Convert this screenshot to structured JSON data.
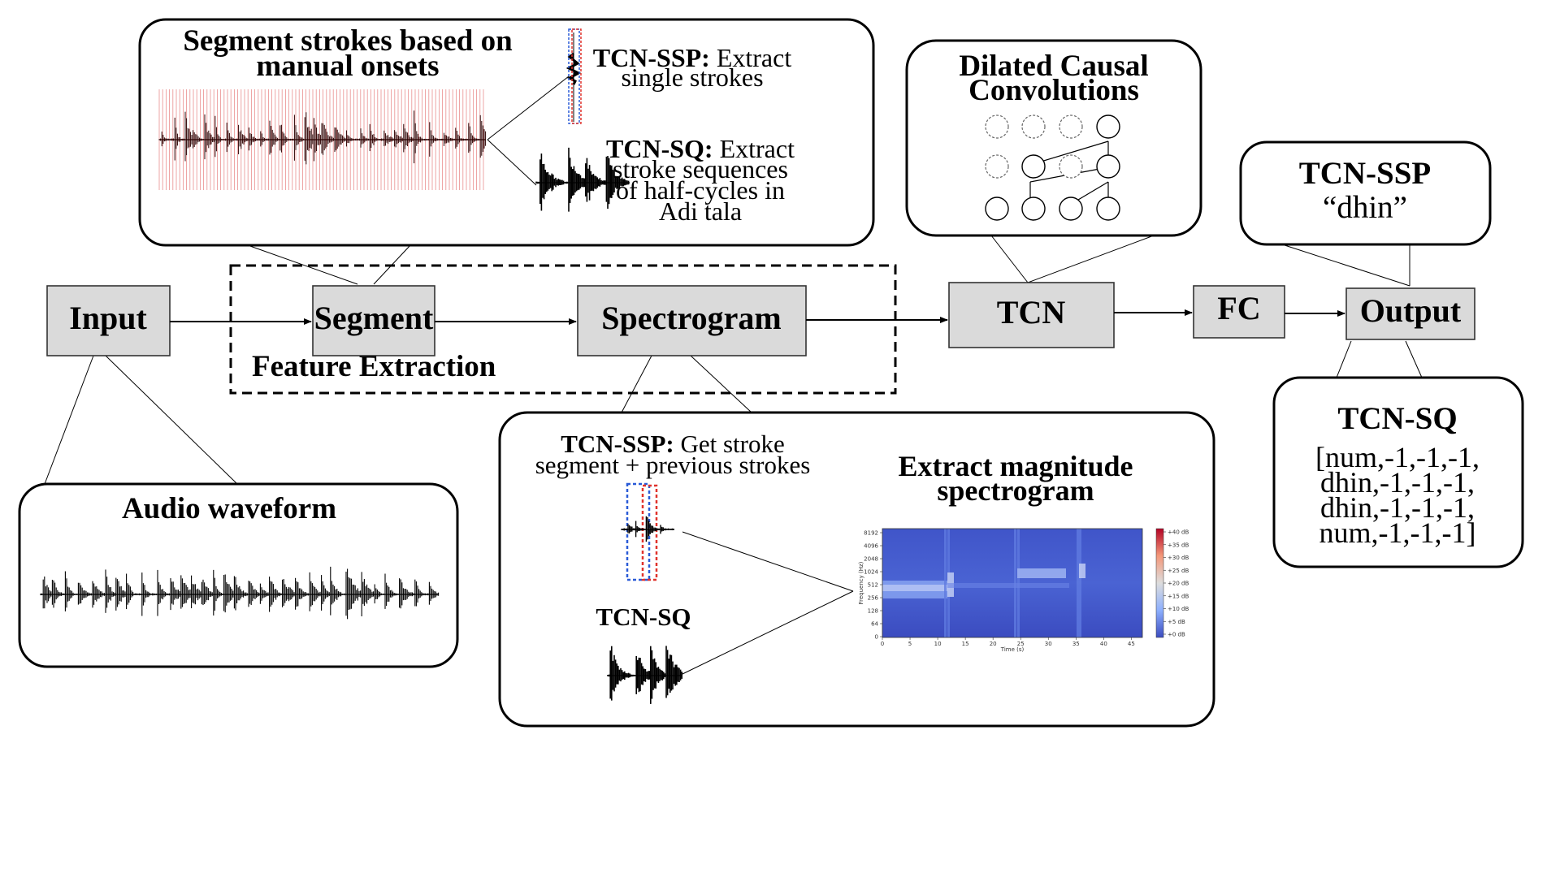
{
  "pipeline": {
    "input": "Input",
    "segment": "Segment",
    "spectrogram": "Spectrogram",
    "tcn": "TCN",
    "fc": "FC",
    "output": "Output",
    "feature_extraction": "Feature Extraction"
  },
  "segment_callout": {
    "title_line1": "Segment strokes based on",
    "title_line2": "manual onsets",
    "ssp_bold": "TCN-SSP:",
    "ssp_line1": " Extract",
    "ssp_line2": "single strokes",
    "sq_bold": "TCN-SQ:",
    "sq_line1": " Extract",
    "sq_line2": "stroke sequences",
    "sq_line3": "of half-cycles in",
    "sq_line4": "Adi tala"
  },
  "waveform_callout": {
    "title": "Audio waveform"
  },
  "spectrogram_callout": {
    "ssp_bold": "TCN-SSP:",
    "ssp_line1": " Get stroke",
    "ssp_line2": "segment + previous strokes",
    "sq_label": "TCN-SQ",
    "title_line1": "Extract magnitude",
    "title_line2": "spectrogram"
  },
  "tcn_callout": {
    "title_line1": "Dilated Causal",
    "title_line2": "Convolutions"
  },
  "output_ssp_callout": {
    "title": "TCN-SSP",
    "value": "“dhin”"
  },
  "output_sq_callout": {
    "title": "TCN-SQ",
    "lines": [
      "[num,-1,-1,-1,",
      "dhin,-1,-1,-1,",
      "dhin,-1,-1,-1,",
      "num,-1,-1,-1]"
    ]
  },
  "spectrogram_plot": {
    "y_ticks": [
      "8192",
      "4096",
      "2048",
      "1024",
      "512",
      "256",
      "128",
      "64",
      "0"
    ],
    "x_ticks": [
      "0",
      "5",
      "10",
      "15",
      "20",
      "25",
      "30",
      "35",
      "40",
      "45"
    ],
    "xlabel": "Time (s)",
    "ylabel": "Frequency (Hz)",
    "colorbar_ticks": [
      "+40 dB",
      "+35 dB",
      "+30 dB",
      "+25 dB",
      "+20 dB",
      "+15 dB",
      "+10 dB",
      "+5 dB",
      "+0 dB"
    ]
  },
  "colors": {
    "process_box": "#dadada",
    "spectrogram_base": "#3f51c8",
    "onset_lines": "#e36a6a",
    "ssp_prev_box": "#2a5bd7",
    "ssp_current_box": "#e0322c"
  }
}
